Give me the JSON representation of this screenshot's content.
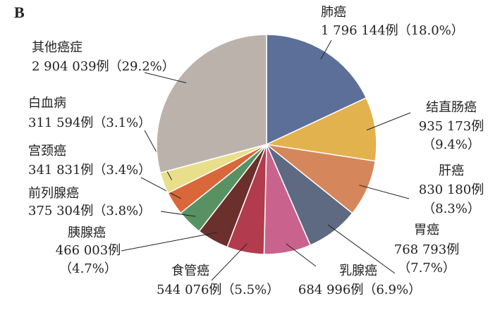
{
  "chart_data": {
    "type": "pie",
    "title": "B",
    "categories": [
      "肺癌",
      "结直肠癌",
      "肝癌",
      "胃癌",
      "乳腺癌",
      "食管癌",
      "胰腺癌",
      "前列腺癌",
      "宫颈癌",
      "白血病",
      "其他癌症"
    ],
    "values": [
      1796144,
      935173,
      830180,
      768793,
      684996,
      544076,
      466003,
      375304,
      341831,
      311594,
      2904039
    ],
    "value_labels": [
      [
        "1 796 144例（18.0%）"
      ],
      [
        "935 173例",
        "（9.4%）"
      ],
      [
        "830 180例",
        "（8.3%）"
      ],
      [
        "768 793例",
        "（7.7%）"
      ],
      [
        "684 996例（6.9%）"
      ],
      [
        "544 076例（5.5%）"
      ],
      [
        "466 003例",
        "（4.7%）"
      ],
      [
        "375 304例（3.8%）"
      ],
      [
        "341 831例（3.4%）"
      ],
      [
        "311 594例（3.1%）"
      ],
      [
        "2 904 039例（29.2%）"
      ]
    ],
    "colors": [
      "#5b6f99",
      "#e2b24f",
      "#d6865b",
      "#5e6a82",
      "#c9638d",
      "#b23b4e",
      "#6b2f2c",
      "#589262",
      "#da673a",
      "#e9df8b",
      "#bbb2ac"
    ]
  }
}
